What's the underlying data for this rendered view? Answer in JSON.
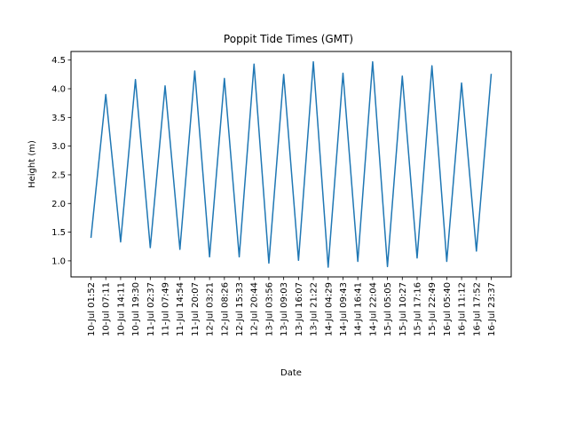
{
  "chart_data": {
    "type": "line",
    "title": "Poppit Tide Times (GMT)",
    "xlabel": "Date",
    "ylabel": "Height (m)",
    "grid": false,
    "legend": "none",
    "series_color": "#1f77b4",
    "categories": [
      "10-Jul 01:52",
      "10-Jul 07:11",
      "10-Jul 14:11",
      "10-Jul 19:30",
      "11-Jul 02:37",
      "11-Jul 07:49",
      "11-Jul 14:54",
      "11-Jul 20:07",
      "12-Jul 03:21",
      "12-Jul 08:26",
      "12-Jul 15:33",
      "12-Jul 20:44",
      "13-Jul 03:56",
      "13-Jul 09:03",
      "13-Jul 16:07",
      "13-Jul 21:22",
      "14-Jul 04:29",
      "14-Jul 09:43",
      "14-Jul 16:41",
      "14-Jul 22:04",
      "15-Jul 05:05",
      "15-Jul 10:27",
      "15-Jul 17:16",
      "15-Jul 22:49",
      "16-Jul 05:40",
      "16-Jul 11:12",
      "16-Jul 17:52",
      "16-Jul 23:37"
    ],
    "values": [
      1.4,
      3.9,
      1.33,
      4.16,
      1.23,
      4.05,
      1.2,
      4.31,
      1.07,
      4.18,
      1.07,
      4.43,
      0.96,
      4.25,
      1.01,
      4.47,
      0.89,
      4.27,
      0.99,
      4.47,
      0.9,
      4.22,
      1.05,
      4.4,
      0.99,
      4.1,
      1.17,
      4.26
    ],
    "ylim": [
      0.72,
      4.65
    ],
    "yticks": [
      "1.0",
      "1.5",
      "2.0",
      "2.5",
      "3.0",
      "3.5",
      "4.0",
      "4.5"
    ]
  }
}
